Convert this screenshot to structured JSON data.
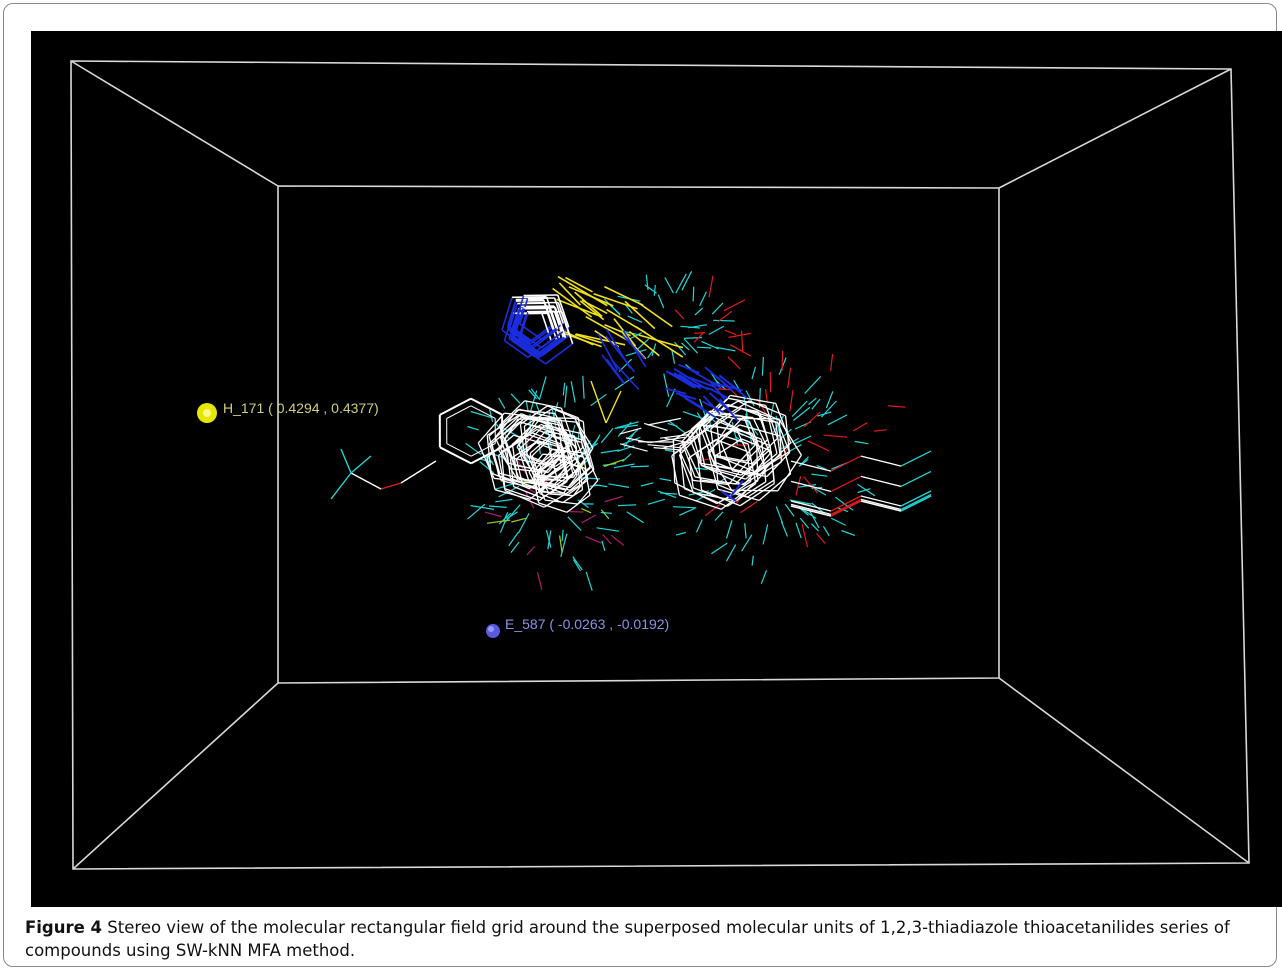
{
  "figure": {
    "number_label": "Figure 4",
    "caption_text": "Stereo view of the molecular rectangular field grid around the superposed molecular units of 1,2,3-thiadiazole thioacetanilides series of compounds using SW-kNN MFA method."
  },
  "field_points": [
    {
      "id": "H_171",
      "label": "H_171 ( 0.4294   , 0.4377)",
      "color": "#e6e600"
    },
    {
      "id": "E_587",
      "label": "E_587 ( -0.0263   , -0.0192)",
      "color": "#5a5ae0"
    }
  ],
  "colors": {
    "background": "#000000",
    "grid_box": "#d8d8d8",
    "carbon": "#ffffff",
    "hydrogen": "#1fd6d6",
    "sulfur": "#f2e21a",
    "nitrogen": "#1a2de0",
    "oxygen": "#e01a1a",
    "halogen": "#9ad21a",
    "other": "#b01a6e"
  }
}
